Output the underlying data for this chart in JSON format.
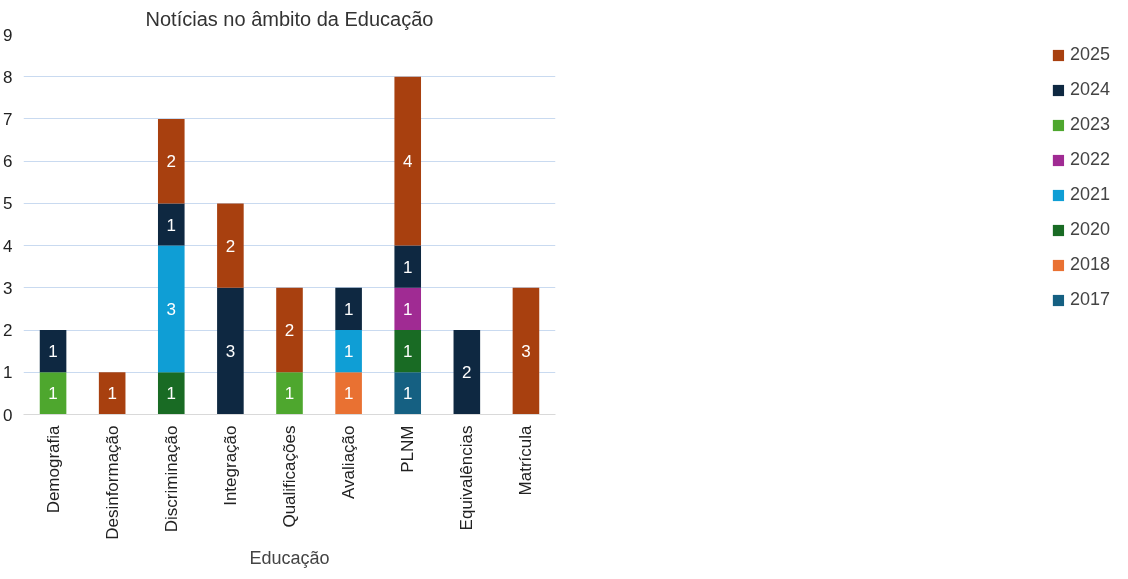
{
  "chart_data": {
    "type": "bar",
    "title": "Notícias no âmbito da Educação",
    "xlabel": "Educação",
    "categories": [
      "Demografia",
      "Desinformação",
      "Discriminação",
      "Integração",
      "Qualificações",
      "Avaliação",
      "PLNM",
      "Equivalências",
      "Matrícula"
    ],
    "stacked": true,
    "data_labels": true,
    "grid": "y",
    "legend": "right",
    "ylim": [
      0,
      9
    ],
    "yticks": [
      0,
      1,
      2,
      3,
      4,
      5,
      6,
      7,
      8,
      9
    ],
    "series": [
      {
        "name": "2017",
        "color": "#156082",
        "values": [
          null,
          null,
          null,
          null,
          null,
          null,
          1,
          null,
          null
        ]
      },
      {
        "name": "2018",
        "color": "#e97132",
        "values": [
          null,
          null,
          null,
          null,
          null,
          1,
          null,
          null,
          null
        ]
      },
      {
        "name": "2020",
        "color": "#196b24",
        "values": [
          null,
          null,
          1,
          null,
          null,
          null,
          1,
          null,
          null
        ]
      },
      {
        "name": "2021",
        "color": "#0f9ed5",
        "values": [
          null,
          null,
          3,
          null,
          null,
          1,
          null,
          null,
          null
        ]
      },
      {
        "name": "2022",
        "color": "#a02b93",
        "values": [
          null,
          null,
          null,
          null,
          null,
          null,
          1,
          null,
          null
        ]
      },
      {
        "name": "2023",
        "color": "#4ea72e",
        "values": [
          1,
          null,
          null,
          null,
          1,
          null,
          null,
          null,
          null
        ]
      },
      {
        "name": "2024",
        "color": "#0e2841",
        "values": [
          1,
          null,
          1,
          3,
          null,
          1,
          1,
          2,
          null
        ]
      },
      {
        "name": "2025",
        "color": "#a8400f",
        "values": [
          null,
          1,
          2,
          2,
          2,
          null,
          4,
          null,
          3
        ]
      }
    ]
  }
}
